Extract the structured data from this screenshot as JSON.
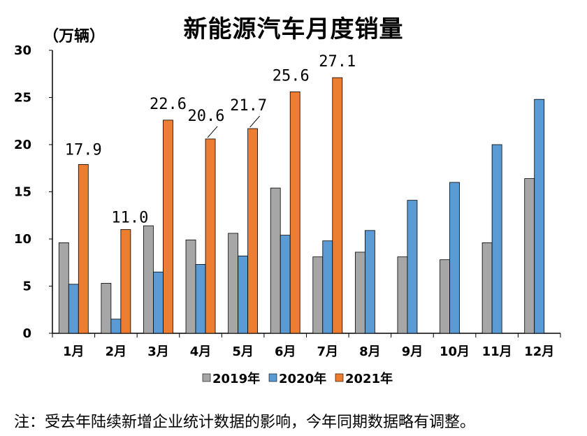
{
  "chart_data": {
    "type": "bar",
    "title": "新能源汽车月度销量",
    "unit_label": "（万辆）",
    "categories": [
      "1月",
      "2月",
      "3月",
      "4月",
      "5月",
      "6月",
      "7月",
      "8月",
      "9月",
      "10月",
      "11月",
      "12月"
    ],
    "series": [
      {
        "name": "2019年",
        "color": "#a6a6a6",
        "values": [
          9.6,
          5.3,
          11.4,
          9.9,
          10.6,
          15.4,
          8.1,
          8.6,
          8.1,
          7.8,
          9.6,
          16.4
        ]
      },
      {
        "name": "2020年",
        "color": "#5b9bd5",
        "values": [
          5.2,
          1.5,
          6.5,
          7.3,
          8.2,
          10.4,
          9.8,
          10.9,
          14.1,
          16.0,
          20.0,
          24.8
        ]
      },
      {
        "name": "2021年",
        "color": "#ed7d31",
        "values": [
          17.9,
          11.0,
          22.6,
          20.6,
          21.7,
          25.6,
          27.1,
          null,
          null,
          null,
          null,
          null
        ]
      }
    ],
    "data_labels": [
      "17.9",
      "11.0",
      "22.6",
      "20.6",
      "21.7",
      "25.6",
      "27.1"
    ],
    "yticks": [
      "0",
      "5",
      "10",
      "15",
      "20",
      "25",
      "30"
    ],
    "ylim": [
      0,
      30
    ],
    "grid": false,
    "legend_position": "bottom"
  },
  "note": "注：受去年陆续新增企业统计数据的影响，今年同期数据略有调整。"
}
